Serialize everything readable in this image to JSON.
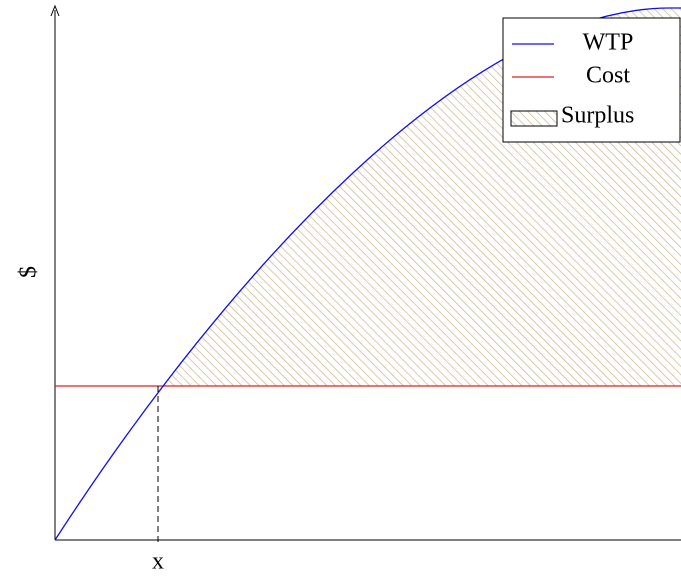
{
  "y_axis_label": "$",
  "x_marker_label": "x",
  "legend": [
    "WTP",
    "Cost",
    "Surplus"
  ]
}
